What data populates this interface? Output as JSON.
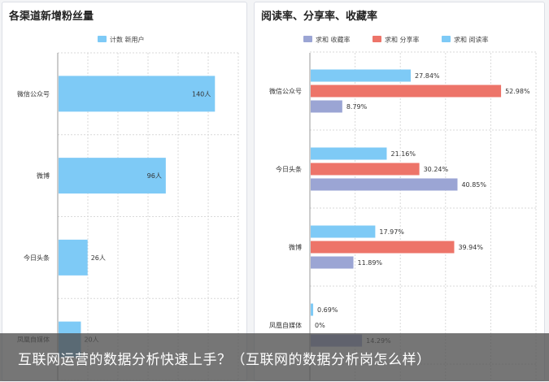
{
  "chart_data": [
    {
      "type": "bar",
      "orientation": "horizontal",
      "title": "各渠道新增粉丝量",
      "categories": [
        "微信公众号",
        "微博",
        "今日头条",
        "凤凰自媒体"
      ],
      "series": [
        {
          "name": "计数 新用户",
          "color": "#7ecaf6",
          "values": [
            140,
            96,
            26,
            20
          ],
          "labels": [
            "140人",
            "96人",
            "26人",
            "20人"
          ]
        }
      ],
      "xlim": [
        0,
        150
      ],
      "grid": true,
      "legend": "top-center"
    },
    {
      "type": "bar",
      "orientation": "horizontal",
      "title": "阅读率、分享率、收藏率",
      "categories": [
        "微信公众号",
        "今日头条",
        "微博",
        "凤凰自媒体"
      ],
      "series": [
        {
          "name": "求和 阅读率",
          "color": "#7ecaf6",
          "values": [
            27.84,
            21.16,
            17.97,
            0.69
          ],
          "labels": [
            "27.84%",
            "21.16%",
            "17.97%",
            "0.69%"
          ]
        },
        {
          "name": "求和 分享率",
          "color": "#ed7469",
          "values": [
            52.98,
            30.24,
            39.94,
            0
          ],
          "labels": [
            "52.98%",
            "30.24%",
            "39.94%",
            "0%"
          ]
        },
        {
          "name": "求和 收藏率",
          "color": "#9ba5d4",
          "values": [
            8.79,
            40.85,
            11.89,
            14.29
          ],
          "labels": [
            "8.79%",
            "40.85%",
            "11.89%",
            "14.29%"
          ]
        }
      ],
      "legend_order": [
        "求和 收藏率",
        "求和 分享率",
        "求和 阅读率"
      ],
      "xlim": [
        0,
        55
      ],
      "grid": true,
      "legend": "top-center"
    }
  ],
  "caption": "互联网运营的数据分析快速上手？（互联网的数据分析岗怎么样）",
  "colors": {
    "caption_bg": "#505050",
    "grid": "#d9d9d9"
  }
}
